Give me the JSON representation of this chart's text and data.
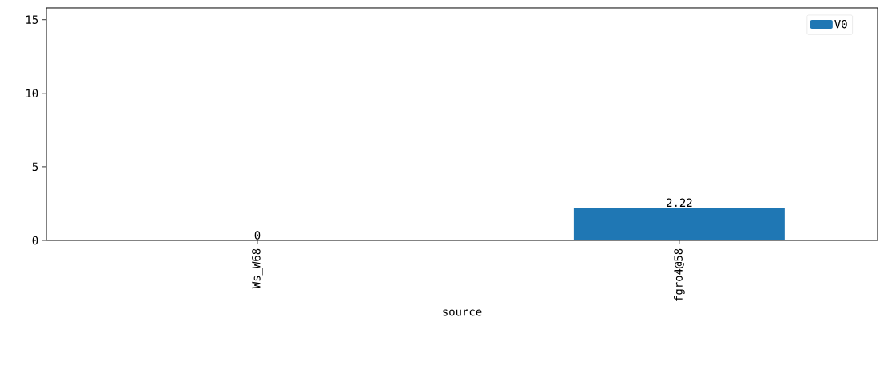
{
  "chart_data": {
    "type": "bar",
    "xlabel": "source",
    "categories": [
      "Ws_W68",
      "fgro4@58"
    ],
    "series": [
      {
        "name": "V0",
        "color": "#1f77b4",
        "values": [
          0,
          2.22
        ]
      }
    ],
    "ylim": [
      0,
      15.8
    ],
    "yticks": [
      0,
      5,
      10,
      15
    ],
    "data_labels": true,
    "legend": "top right",
    "grid": false
  }
}
